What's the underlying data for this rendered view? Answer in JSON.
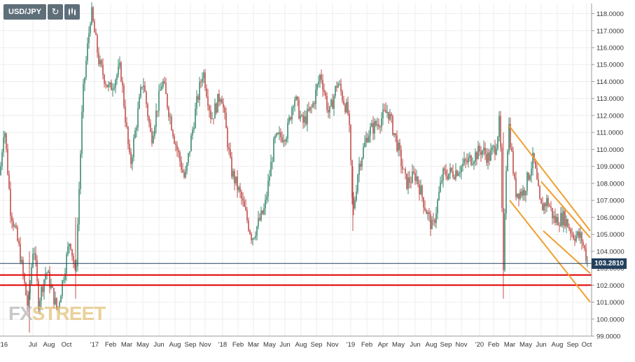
{
  "toolbar": {
    "symbol": "USD/JPY",
    "refresh_icon": "refresh-icon",
    "chart_type_icon": "candlestick-icon"
  },
  "watermark": {
    "fx": "FX",
    "street": "STREET"
  },
  "colors": {
    "up": "#3d8a6f",
    "down": "#c0504d",
    "channel": "#f0a030",
    "support": "#e00000",
    "price_line": "#23405e",
    "grid": "#eeeeee"
  },
  "chart_data": {
    "type": "candlestick",
    "symbol": "USD/JPY",
    "current_price": "103.2810",
    "ylim": [
      99,
      118.6
    ],
    "y_ticks": [
      "99.0000",
      "100.0000",
      "101.0000",
      "102.0000",
      "103.0000",
      "104.0000",
      "105.0000",
      "106.0000",
      "107.0000",
      "108.0000",
      "109.0000",
      "110.0000",
      "111.0000",
      "112.0000",
      "113.0000",
      "114.0000",
      "115.0000",
      "116.0000",
      "117.0000",
      "118.0000"
    ],
    "x_ticks": [
      "'16",
      "Jul",
      "Aug",
      "Oct",
      "'17",
      "Feb",
      "Mar",
      "May",
      "Jun",
      "Aug",
      "Sep",
      "Nov",
      "'18",
      "Feb",
      "Mar",
      "May",
      "Jun",
      "Aug",
      "Sep",
      "Nov",
      "'19",
      "Feb",
      "Apr",
      "May",
      "Jun",
      "Aug",
      "Sep",
      "Nov",
      "'20",
      "Feb",
      "Mar",
      "May",
      "Jun",
      "Aug",
      "Sep",
      "Oct"
    ],
    "horizontal_levels": [
      102.6,
      102.0
    ],
    "anchors": [
      [
        0,
        108.5
      ],
      [
        6,
        111.6
      ],
      [
        15,
        106.5
      ],
      [
        28,
        104.0
      ],
      [
        40,
        100.6
      ],
      [
        48,
        104.6
      ],
      [
        55,
        101.0
      ],
      [
        66,
        102.9
      ],
      [
        82,
        100.5
      ],
      [
        100,
        104.8
      ],
      [
        108,
        102.4
      ],
      [
        118,
        113.0
      ],
      [
        130,
        118.2
      ],
      [
        142,
        115.0
      ],
      [
        156,
        113.5
      ],
      [
        172,
        114.8
      ],
      [
        186,
        109.0
      ],
      [
        204,
        114.2
      ],
      [
        216,
        110.6
      ],
      [
        232,
        114.1
      ],
      [
        250,
        110.5
      ],
      [
        264,
        108.2
      ],
      [
        280,
        112.5
      ],
      [
        290,
        114.7
      ],
      [
        302,
        111.8
      ],
      [
        316,
        113.4
      ],
      [
        330,
        108.8
      ],
      [
        344,
        107.2
      ],
      [
        360,
        104.8
      ],
      [
        378,
        106.5
      ],
      [
        392,
        110.5
      ],
      [
        410,
        111.0
      ],
      [
        420,
        113.2
      ],
      [
        432,
        111.5
      ],
      [
        446,
        112.5
      ],
      [
        458,
        114.5
      ],
      [
        470,
        112.0
      ],
      [
        482,
        114.0
      ],
      [
        498,
        112.0
      ],
      [
        504,
        106.0
      ],
      [
        512,
        109.0
      ],
      [
        526,
        111.0
      ],
      [
        538,
        111.5
      ],
      [
        554,
        112.3
      ],
      [
        566,
        110.5
      ],
      [
        580,
        108.0
      ],
      [
        594,
        108.5
      ],
      [
        608,
        106.5
      ],
      [
        618,
        105.3
      ],
      [
        632,
        108.5
      ],
      [
        650,
        108.7
      ],
      [
        668,
        109.3
      ],
      [
        688,
        110.0
      ],
      [
        698,
        109.5
      ],
      [
        708,
        110.2
      ],
      [
        714,
        111.8
      ],
      [
        716,
        108.0
      ],
      [
        719,
        102.5
      ],
      [
        722,
        108.5
      ],
      [
        727,
        111.4
      ],
      [
        736,
        107.5
      ],
      [
        748,
        107.5
      ],
      [
        762,
        109.5
      ],
      [
        772,
        106.5
      ],
      [
        782,
        107.0
      ],
      [
        792,
        105.8
      ],
      [
        806,
        106.0
      ],
      [
        818,
        105.0
      ],
      [
        830,
        104.8
      ],
      [
        840,
        103.3
      ]
    ],
    "channels": [
      {
        "name": "upper",
        "points": [
          [
            727,
            111.4
          ],
          [
            843,
            105.2
          ]
        ]
      },
      {
        "name": "upper2",
        "points": [
          [
            773,
            108.1
          ],
          [
            843,
            104.8
          ]
        ]
      },
      {
        "name": "lower",
        "points": [
          [
            728,
            107.0
          ],
          [
            843,
            101.0
          ]
        ]
      },
      {
        "name": "lower2",
        "points": [
          [
            776,
            105.2
          ],
          [
            843,
            102.7
          ]
        ]
      }
    ]
  }
}
